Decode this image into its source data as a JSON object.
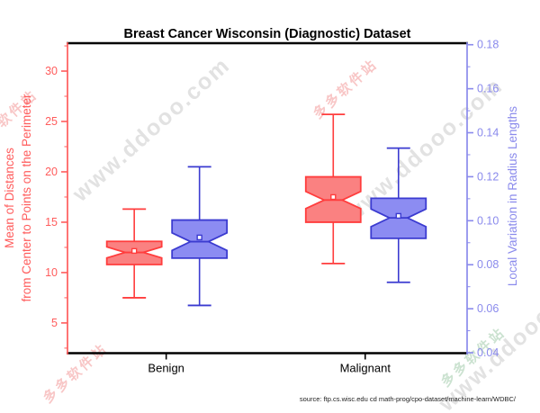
{
  "watermarks": {
    "diagonal_text": "www.ddooo.com",
    "stamp_text": "多多软件站"
  },
  "chart_data": {
    "type": "boxplot",
    "title": "Breast Cancer Wisconsin (Diagnostic) Dataset",
    "source_note": "source: ftp.cs.wisc.edu cd math-prog/cpo-dataset/machine-learn/WDBC/",
    "categories": [
      "Benign",
      "Malignant"
    ],
    "layout": {
      "grid": false,
      "legend": false,
      "notched_boxes": true,
      "mean_marker": "open-square"
    },
    "axes": {
      "left": {
        "label_line1": "Mean of Distances",
        "label_line2": "from Center to Points on the Perimeter",
        "color": "#ff5c5c",
        "min": 2.0,
        "max": 32.77,
        "major_ticks": [
          5,
          10,
          15,
          20,
          25,
          30
        ],
        "major_labels": [
          "5",
          "10",
          "15",
          "20",
          "25",
          "30"
        ],
        "minor_ticks": [
          2.5,
          7.5,
          12.5,
          17.5,
          22.5,
          27.5,
          32.5
        ]
      },
      "right": {
        "label": "Local Variation in Radius Lengths",
        "color": "#8a8aec",
        "min": 0.0398,
        "max": 0.1807,
        "major_ticks": [
          0.04,
          0.06,
          0.08,
          0.1,
          0.12,
          0.14,
          0.16,
          0.18
        ],
        "major_labels": [
          "0.04",
          "0.06",
          "0.08",
          "0.10",
          "0.12",
          "0.14",
          "0.16",
          "0.18"
        ],
        "minor_ticks": [
          0.05,
          0.07,
          0.09,
          0.11,
          0.13,
          0.15,
          0.17
        ]
      }
    },
    "series": [
      {
        "name": "Mean of Distances from Center to Points on the Perimeter",
        "axis": "left",
        "line_color": "#ff3d3d",
        "fill_color": "#fa8181",
        "boxes": [
          {
            "category": "Benign",
            "whisker_low": 7.5,
            "q1": 10.8,
            "median": 12.0,
            "q3": 13.1,
            "whisker_high": 16.3,
            "mean": 12.15,
            "notch": 0.55
          },
          {
            "category": "Malignant",
            "whisker_low": 10.9,
            "q1": 15.0,
            "median": 17.2,
            "q3": 19.5,
            "whisker_high": 25.7,
            "mean": 17.5,
            "notch": 0.85
          }
        ]
      },
      {
        "name": "Local Variation in Radius Lengths",
        "axis": "right",
        "line_color": "#3b3bd0",
        "fill_color": "#8c8cf2",
        "boxes": [
          {
            "category": "Benign",
            "whisker_low": 0.0615,
            "q1": 0.083,
            "median": 0.0905,
            "q3": 0.1003,
            "whisker_high": 0.1245,
            "mean": 0.0924,
            "notch": 0.004
          },
          {
            "category": "Malignant",
            "whisker_low": 0.072,
            "q1": 0.092,
            "median": 0.1013,
            "q3": 0.1102,
            "whisker_high": 0.133,
            "mean": 0.1022,
            "notch": 0.004
          }
        ]
      }
    ]
  }
}
